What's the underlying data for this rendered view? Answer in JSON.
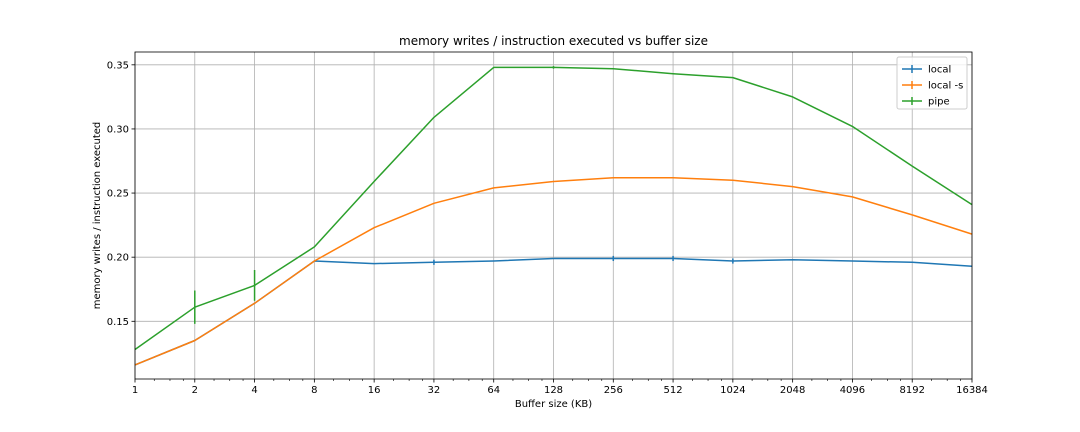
{
  "chart_data": {
    "type": "line",
    "title": "memory writes / instruction executed vs buffer size",
    "xlabel": "Buffer size (KB)",
    "ylabel": "memory writes / instruction executed",
    "x": [
      1,
      2,
      4,
      8,
      16,
      32,
      64,
      128,
      256,
      512,
      1024,
      2048,
      4096,
      8192,
      16384
    ],
    "x_scale": "log2",
    "xlim": [
      1,
      16384
    ],
    "ylim": [
      0.105,
      0.36
    ],
    "yticks": [
      0.15,
      0.2,
      0.25,
      0.3,
      0.35
    ],
    "ytick_labels": [
      "0.15",
      "0.20",
      "0.25",
      "0.30",
      "0.35"
    ],
    "xtick_labels": [
      "1",
      "2",
      "4",
      "8",
      "16",
      "32",
      "64",
      "128",
      "256",
      "512",
      "1024",
      "2048",
      "4096",
      "8192",
      "16384"
    ],
    "grid": true,
    "legend_position": "top-right",
    "series": [
      {
        "name": "local",
        "color": "#1f77b4",
        "values": [
          0.116,
          0.135,
          0.164,
          0.197,
          0.195,
          0.196,
          0.197,
          0.199,
          0.199,
          0.199,
          0.197,
          0.198,
          0.197,
          0.196,
          0.193
        ],
        "error": [
          0,
          0,
          0,
          0,
          0,
          0.002,
          0,
          0,
          0.002,
          0.002,
          0.002,
          0,
          0,
          0,
          0
        ]
      },
      {
        "name": "local -s",
        "color": "#ff7f0e",
        "values": [
          0.116,
          0.135,
          0.164,
          0.197,
          0.223,
          0.242,
          0.254,
          0.259,
          0.262,
          0.262,
          0.26,
          0.255,
          0.247,
          0.233,
          0.218
        ],
        "error": [
          0,
          0,
          0,
          0,
          0,
          0,
          0,
          0,
          0,
          0,
          0,
          0,
          0,
          0,
          0
        ]
      },
      {
        "name": "pipe",
        "color": "#2ca02c",
        "values": [
          0.128,
          0.161,
          0.178,
          0.208,
          0.259,
          0.309,
          0.348,
          0.348,
          0.347,
          0.343,
          0.34,
          0.325,
          0.302,
          0.271,
          0.241
        ],
        "error": [
          0,
          0.013,
          0.012,
          0,
          0,
          0,
          0,
          0.001,
          0,
          0,
          0,
          0,
          0,
          0,
          0
        ]
      }
    ]
  }
}
